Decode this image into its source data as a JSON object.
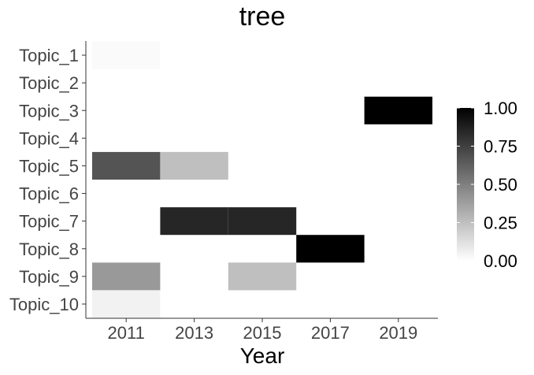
{
  "chart_data": {
    "type": "heatmap",
    "title": "tree",
    "xlabel": "Year",
    "ylabel": "",
    "x_ticks": [
      2011,
      2013,
      2015,
      2017,
      2019
    ],
    "y_categories": [
      "Topic_1",
      "Topic_2",
      "Topic_3",
      "Topic_4",
      "Topic_5",
      "Topic_6",
      "Topic_7",
      "Topic_8",
      "Topic_9",
      "Topic_10"
    ],
    "x_range": [
      2010,
      2020
    ],
    "cell_width_years": 2,
    "cells": [
      {
        "topic": "Topic_1",
        "x_start": 2010,
        "value": 0.02
      },
      {
        "topic": "Topic_3",
        "x_start": 2018,
        "value": 1.0
      },
      {
        "topic": "Topic_5",
        "x_start": 2010,
        "value": 0.67
      },
      {
        "topic": "Topic_5",
        "x_start": 2012,
        "value": 0.25
      },
      {
        "topic": "Topic_7",
        "x_start": 2012,
        "value": 0.85
      },
      {
        "topic": "Topic_7",
        "x_start": 2014,
        "value": 0.85
      },
      {
        "topic": "Topic_8",
        "x_start": 2016,
        "value": 1.0
      },
      {
        "topic": "Topic_9",
        "x_start": 2010,
        "value": 0.4
      },
      {
        "topic": "Topic_9",
        "x_start": 2014,
        "value": 0.25
      },
      {
        "topic": "Topic_10",
        "x_start": 2010,
        "value": 0.05
      }
    ],
    "colorbar": {
      "ticks": [
        0.0,
        0.25,
        0.5,
        0.75,
        1.0
      ],
      "tick_labels": [
        "0.00",
        "0.25",
        "0.50",
        "0.75",
        "1.00"
      ],
      "low_color": "#ffffff",
      "high_color": "#000000",
      "placement": "right"
    },
    "grid": false
  }
}
